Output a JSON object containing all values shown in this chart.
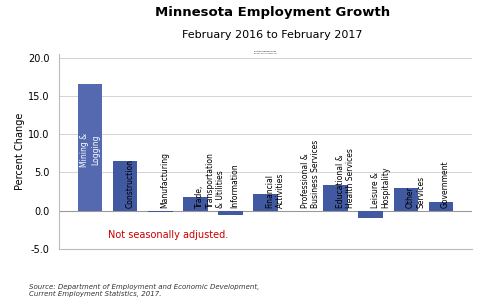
{
  "title": "Minnesota Employment Growth",
  "subtitle": "February 2016 to February 2017",
  "categories": [
    "Mining &\nLogging",
    "Construction",
    "Manufacturing",
    "Trade,\nTransportation\n& Utilities",
    "Information",
    "Financial\nActivities",
    "Professional &\nBusiness Services",
    "Educational &\nHealth Services",
    "Leisure &\nHospitality",
    "Other\nServices",
    "Government"
  ],
  "values": [
    16.5,
    6.5,
    -0.2,
    1.8,
    -0.5,
    2.2,
    -0.1,
    3.3,
    -1.0,
    3.0,
    1.1
  ],
  "bar_color": "#4059a0",
  "bar_color_first": "#5569b0",
  "ylim": [
    -5.0,
    20.5
  ],
  "yticks": [
    -5.0,
    0.0,
    5.0,
    10.0,
    15.0,
    20.0
  ],
  "ylabel": "Percent Change",
  "annotation": "Not seasonally adjusted.",
  "annotation_color": "#cc0000",
  "source_text": "Source: Department of Employment and Economic Development,\nCurrent Employment Statistics, 2017.",
  "background_color": "#ffffff",
  "grid_color": "#cccccc"
}
